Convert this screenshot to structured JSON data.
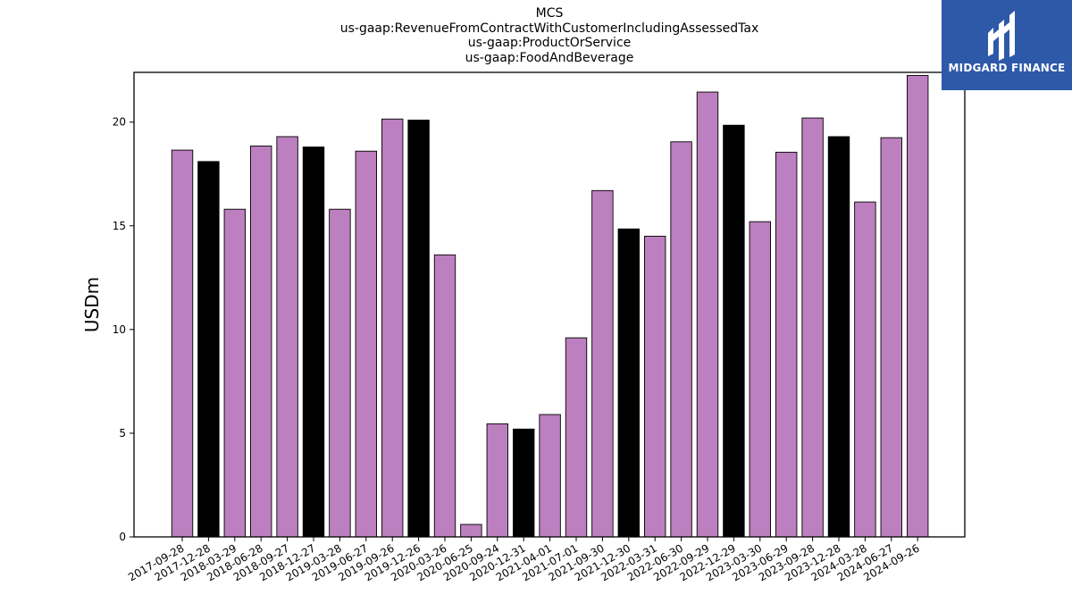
{
  "titles": [
    "MCS",
    "us-gaap:RevenueFromContractWithCustomerIncludingAssessedTax",
    "us-gaap:ProductOrService",
    "us-gaap:FoodAndBeverage"
  ],
  "logo": {
    "text": "MIDGARD FINANCE",
    "icon": "midgard-logo-icon",
    "background": "#2d59a8"
  },
  "colors": {
    "purple": "#bc7fbf",
    "black": "#000000"
  },
  "chart_data": {
    "type": "bar",
    "title": "MCS",
    "ylabel": "USDm",
    "xlabel": "",
    "ylim": [
      0,
      22.4
    ],
    "yticks": [
      0,
      5,
      10,
      15,
      20
    ],
    "grid": false,
    "categories": [
      "2017-09-28",
      "2017-12-28",
      "2018-03-29",
      "2018-06-28",
      "2018-09-27",
      "2018-12-27",
      "2019-03-28",
      "2019-06-27",
      "2019-09-26",
      "2019-12-26",
      "2020-03-26",
      "2020-06-25",
      "2020-09-24",
      "2020-12-31",
      "2021-04-01",
      "2021-07-01",
      "2021-09-30",
      "2021-12-30",
      "2022-03-31",
      "2022-06-30",
      "2022-09-29",
      "2022-12-29",
      "2023-03-30",
      "2023-06-29",
      "2023-09-28",
      "2023-12-28",
      "2024-03-28",
      "2024-06-27",
      "2024-09-26"
    ],
    "values": [
      18.65,
      18.1,
      15.8,
      18.85,
      19.3,
      18.8,
      15.8,
      18.6,
      20.15,
      20.1,
      13.6,
      0.6,
      5.45,
      5.2,
      5.9,
      9.6,
      16.7,
      14.85,
      14.5,
      19.05,
      21.45,
      19.85,
      15.2,
      18.55,
      20.2,
      19.3,
      16.15,
      19.25,
      22.25
    ],
    "bar_colors": [
      "purple",
      "black",
      "purple",
      "purple",
      "purple",
      "black",
      "purple",
      "purple",
      "purple",
      "black",
      "purple",
      "purple",
      "purple",
      "black",
      "purple",
      "purple",
      "purple",
      "black",
      "purple",
      "purple",
      "purple",
      "black",
      "purple",
      "purple",
      "purple",
      "black",
      "purple",
      "purple",
      "purple"
    ]
  }
}
